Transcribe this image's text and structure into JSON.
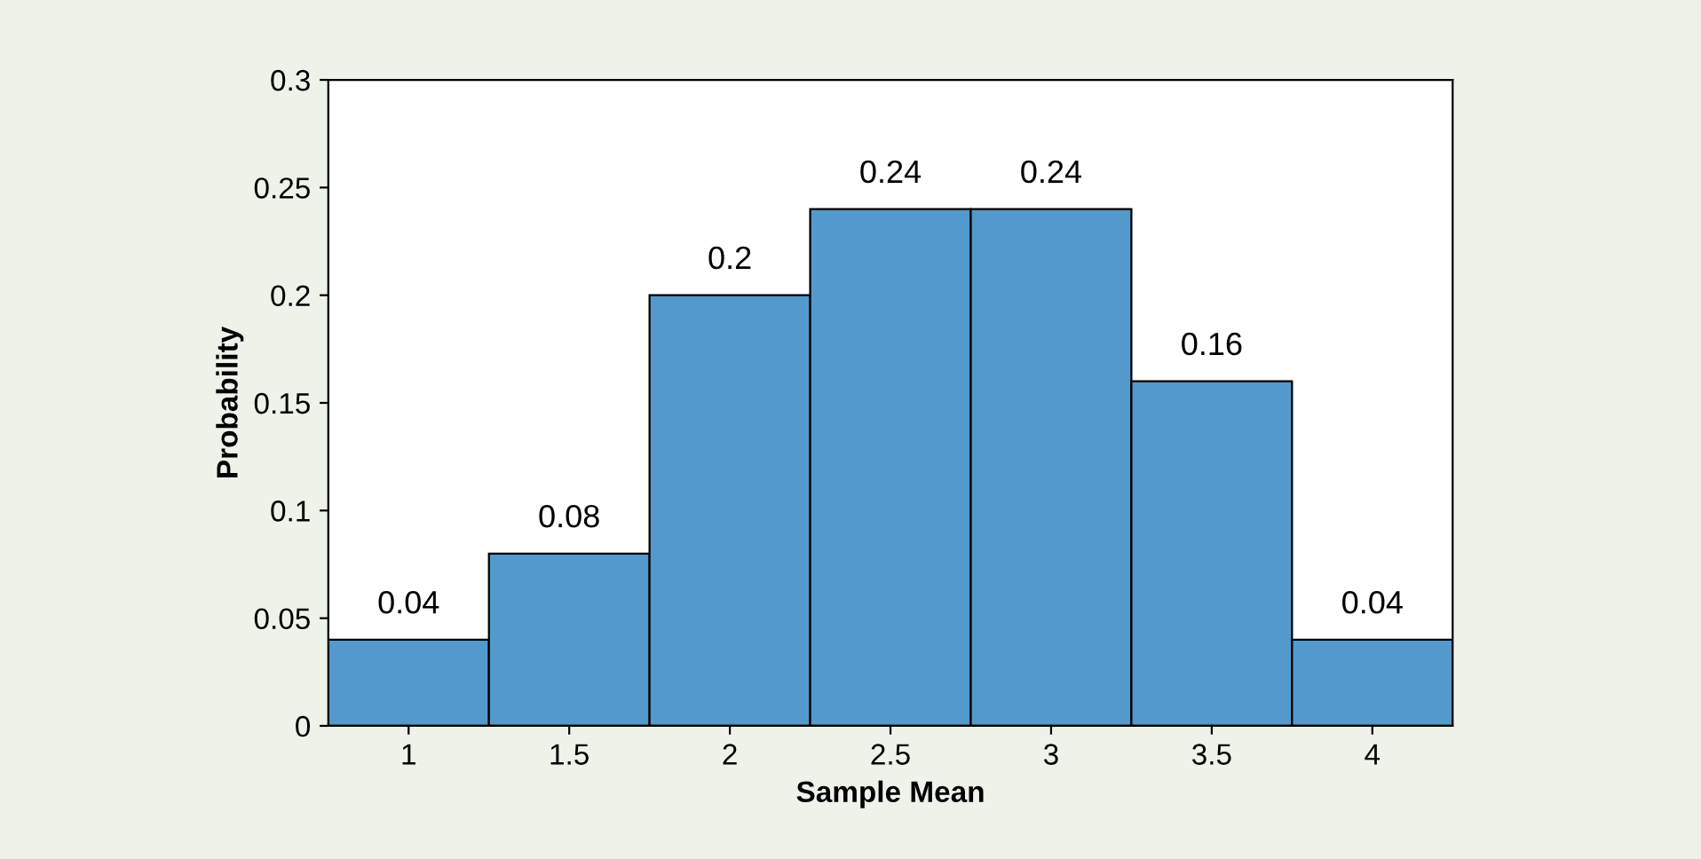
{
  "chart_data": {
    "type": "bar",
    "xlabel": "Sample Mean",
    "ylabel": "Probability",
    "categories": [
      "1",
      "1.5",
      "2",
      "2.5",
      "3",
      "3.5",
      "4"
    ],
    "values": [
      0.04,
      0.08,
      0.2,
      0.24,
      0.24,
      0.16,
      0.04
    ],
    "color": "#5499cc",
    "data_labels": true,
    "ylim": [
      0,
      0.3
    ],
    "yticks": [
      0,
      0.05,
      0.1,
      0.15,
      0.2,
      0.25,
      0.3
    ],
    "grid": false,
    "legend": false
  }
}
